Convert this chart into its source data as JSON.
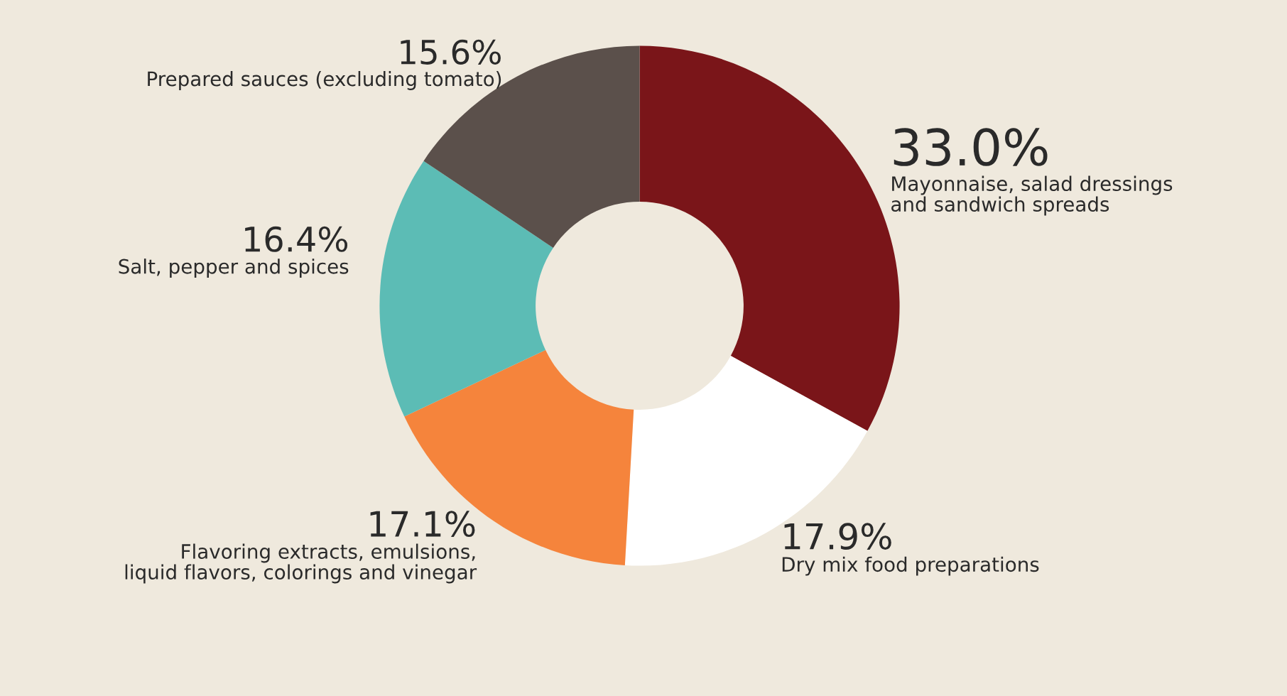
{
  "chart_data": {
    "type": "donut",
    "categories": [
      "Mayonnaise, salad dressings\nand sandwich spreads",
      "Dry mix food preparations",
      "Flavoring extracts, emulsions,\nliquid flavors, colorings and vinegar",
      "Salt, pepper and spices",
      "Prepared sauces (excluding tomato)"
    ],
    "values": [
      33.0,
      17.9,
      17.1,
      16.4,
      15.6
    ],
    "colors": [
      "#7a1519",
      "#ffffff",
      "#f5843c",
      "#5cbcb5",
      "#5b504b"
    ],
    "value_labels": [
      "33.0%",
      "17.9%",
      "17.1%",
      "16.4%",
      "15.6%"
    ],
    "legend": false
  }
}
